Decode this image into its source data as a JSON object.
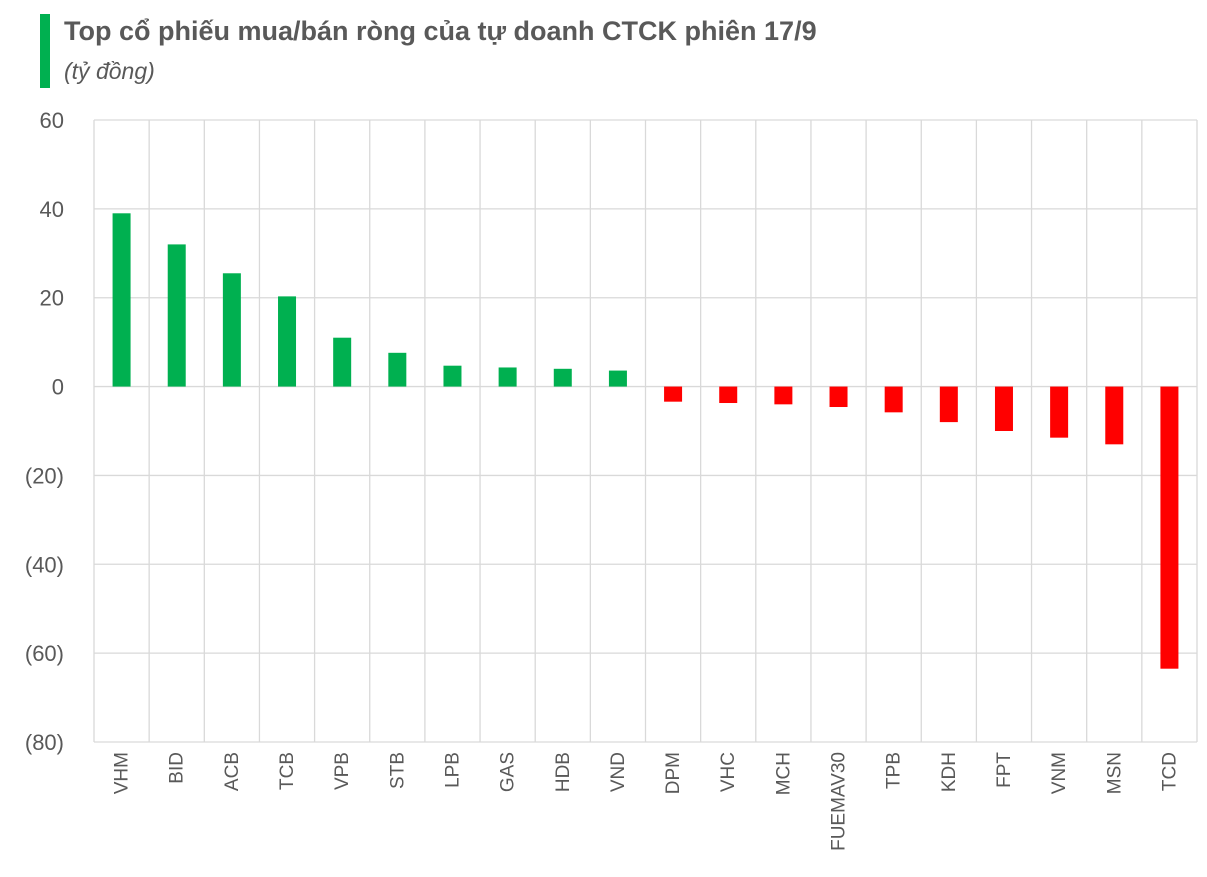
{
  "chart_data": {
    "type": "bar",
    "title": "Top cổ phiếu mua/bán ròng của tự doanh CTCK phiên 17/9",
    "subtitle": "(tỷ đồng)",
    "xlabel": "",
    "ylabel": "",
    "ylim": [
      -80,
      60
    ],
    "y_ticks": [
      60,
      40,
      20,
      0,
      -20,
      -40,
      -60,
      -80
    ],
    "y_tick_labels": [
      "60",
      "40",
      "20",
      "0",
      "(20)",
      "(40)",
      "(60)",
      "(80)"
    ],
    "grid": true,
    "legend": "none",
    "categories": [
      "VHM",
      "BID",
      "ACB",
      "TCB",
      "VPB",
      "STB",
      "LPB",
      "GAS",
      "HDB",
      "VND",
      "DPM",
      "VHC",
      "MCH",
      "FUEMAV30",
      "TPB",
      "KDH",
      "FPT",
      "VNM",
      "MSN",
      "TCD"
    ],
    "values": [
      39,
      32,
      25.5,
      20.3,
      11,
      7.6,
      4.7,
      4.3,
      4.0,
      3.6,
      -3.4,
      -3.7,
      -4.0,
      -4.6,
      -5.8,
      -8.0,
      -10.0,
      -11.5,
      -13.0,
      -63.5
    ],
    "colors": {
      "positive": "#00B050",
      "negative": "#FF0000",
      "grid": "#D9D9D9",
      "text": "#595959",
      "accent": "#00B050"
    }
  }
}
